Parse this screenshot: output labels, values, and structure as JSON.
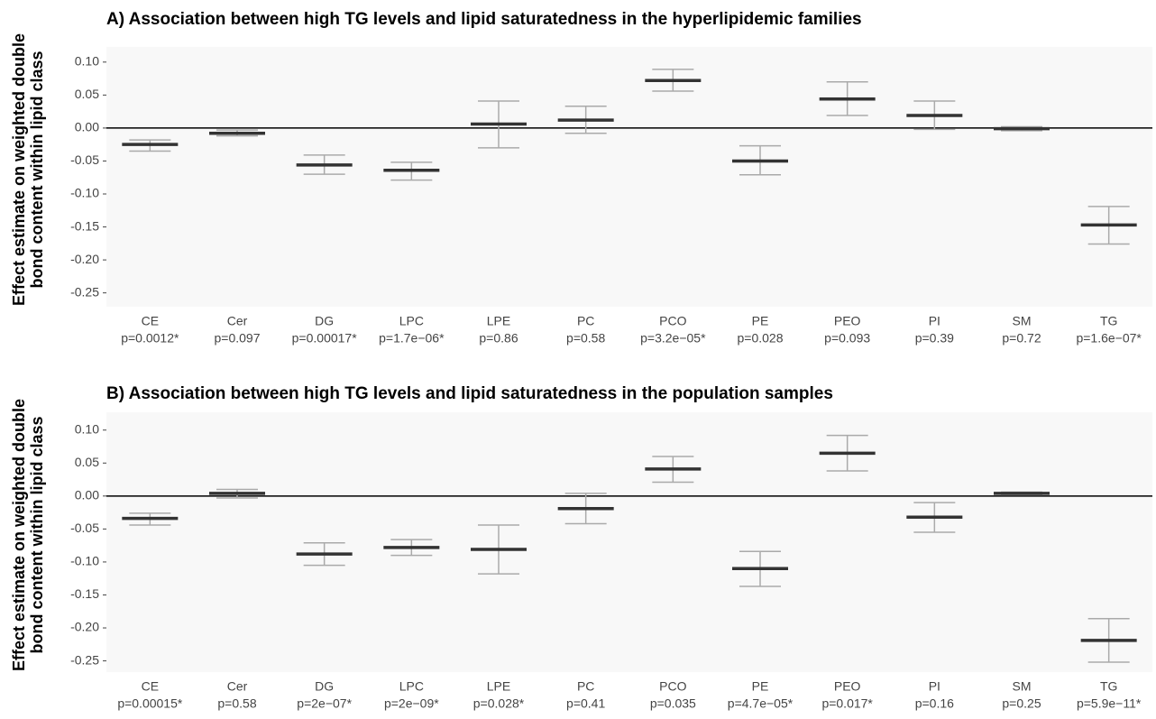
{
  "chart_data": [
    {
      "type": "errorbar",
      "title": "A) Association between high TG levels and lipid saturatedness in the hyperlipidemic families",
      "ylabel": [
        "Effect estimate on weighted double",
        "bond content within lipid class"
      ],
      "categories": [
        "CE",
        "Cer",
        "DG",
        "LPC",
        "LPE",
        "PC",
        "PCO",
        "PE",
        "PEO",
        "PI",
        "SM",
        "TG"
      ],
      "pvalues": [
        "p=0.0012*",
        "p=0.097",
        "p=0.00017*",
        "p=1.7e−06*",
        "p=0.86",
        "p=0.58",
        "p=3.2e−05*",
        "p=0.028",
        "p=0.093",
        "p=0.39",
        "p=0.72",
        "p=1.6e−07*"
      ],
      "values": [
        -0.025,
        -0.008,
        -0.056,
        -0.064,
        0.006,
        0.012,
        0.072,
        -0.05,
        0.044,
        0.019,
        -0.001,
        -0.147
      ],
      "lower": [
        -0.035,
        -0.012,
        -0.07,
        -0.079,
        -0.03,
        -0.008,
        0.056,
        -0.071,
        0.019,
        -0.002,
        -0.004,
        -0.176
      ],
      "upper": [
        -0.018,
        -0.003,
        -0.041,
        -0.052,
        0.041,
        0.033,
        0.089,
        -0.027,
        0.07,
        0.041,
        0.002,
        -0.119
      ],
      "color": "#333333",
      "errorcolor": "#aaaaaa",
      "hline": 0,
      "ylim": [
        -0.271,
        0.123
      ],
      "yticks": [
        {
          "value": 0.1,
          "label": "0.10"
        },
        0.05,
        {
          "value": 0,
          "label": "0.00"
        },
        -0.05,
        {
          "value": -0.1,
          "label": "-0.10"
        },
        -0.15,
        {
          "value": -0.2,
          "label": "-0.20"
        },
        -0.25
      ]
    },
    {
      "type": "errorbar",
      "title": "B) Association between high TG levels and lipid saturatedness in the population samples",
      "ylabel": [
        "Effect estimate on weighted double",
        "bond content within lipid class"
      ],
      "categories": [
        "CE",
        "Cer",
        "DG",
        "LPC",
        "LPE",
        "PC",
        "PCO",
        "PE",
        "PEO",
        "PI",
        "SM",
        "TG"
      ],
      "pvalues": [
        "p=0.00015*",
        "p=0.58",
        "p=2e−07*",
        "p=2e−09*",
        "p=0.028*",
        "p=0.41",
        "p=0.035",
        "p=4.7e−05*",
        "p=0.017*",
        "p=0.16",
        "p=0.25",
        "p=5.9e−11*"
      ],
      "values": [
        -0.034,
        0.004,
        -0.088,
        -0.078,
        -0.081,
        -0.019,
        0.041,
        -0.11,
        0.065,
        -0.032,
        0.004,
        -0.219
      ],
      "lower": [
        -0.044,
        -0.003,
        -0.105,
        -0.09,
        -0.118,
        -0.042,
        0.021,
        -0.137,
        0.038,
        -0.055,
        0.002,
        -0.252
      ],
      "upper": [
        -0.026,
        0.01,
        -0.071,
        -0.066,
        -0.044,
        0.004,
        0.06,
        -0.084,
        0.092,
        -0.01,
        0.006,
        -0.186
      ],
      "color": "#333333",
      "errorcolor": "#aaaaaa",
      "hline": 0,
      "ylim": [
        -0.267,
        0.127
      ],
      "yticks": [
        {
          "value": 0.1,
          "label": "0.10"
        },
        0.05,
        {
          "value": 0,
          "label": "0.00"
        },
        -0.05,
        {
          "value": -0.1,
          "label": "-0.10"
        },
        -0.15,
        {
          "value": -0.2,
          "label": "-0.20"
        },
        -0.25
      ]
    }
  ]
}
